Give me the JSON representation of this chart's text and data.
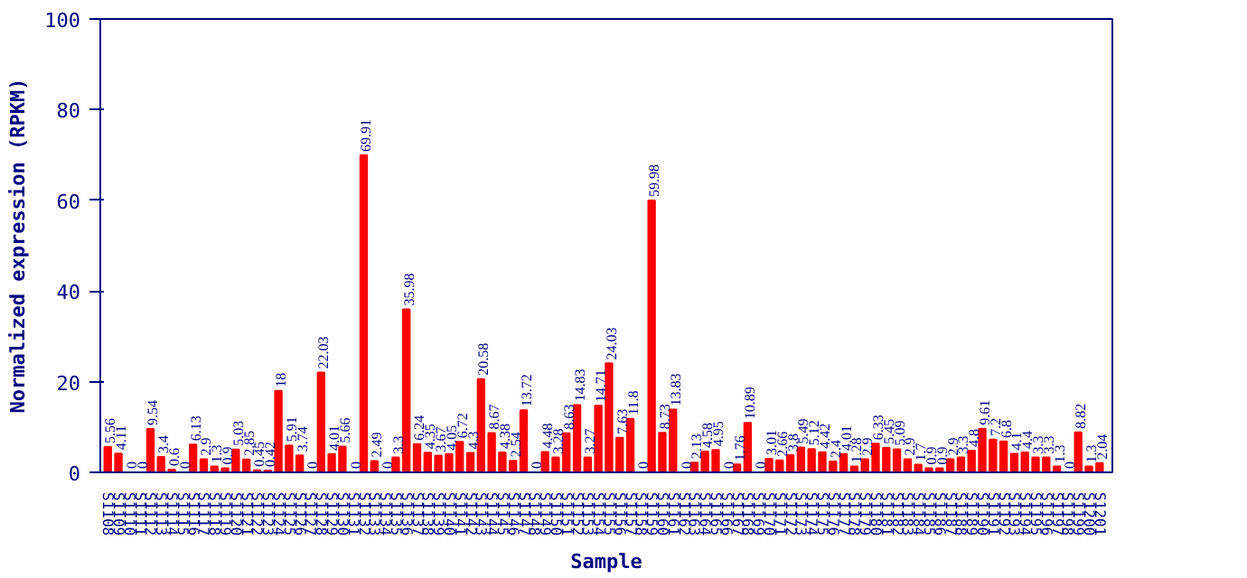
{
  "chart_data": {
    "type": "bar",
    "xlabel": "Sample",
    "ylabel": "Normalized expression (RPKM)",
    "categories": [
      "S1108",
      "S1109",
      "S1110",
      "S1111",
      "S1112",
      "S1113",
      "S1114",
      "S1115",
      "S1116",
      "S1117",
      "S1118",
      "S1119",
      "S1120",
      "S1121",
      "S1122",
      "S1123",
      "S1124",
      "S1125",
      "S1126",
      "S1127",
      "S1128",
      "S1129",
      "S1130",
      "S1131",
      "S1132",
      "S1133",
      "S1134",
      "S1135",
      "S1136",
      "S1137",
      "S1138",
      "S1139",
      "S1140",
      "S1141",
      "S1142",
      "S1143",
      "S1144",
      "S1145",
      "S1146",
      "S1147",
      "S1148",
      "S1149",
      "S1150",
      "S1151",
      "S1152",
      "S1153",
      "S1154",
      "S1155",
      "S1156",
      "S1157",
      "S1158",
      "S1159",
      "S1160",
      "S1161",
      "S1162",
      "S1163",
      "S1164",
      "S1165",
      "S1166",
      "S1167",
      "S1168",
      "S1169",
      "S1170",
      "S1171",
      "S1172",
      "S1173",
      "S1174",
      "S1175",
      "S1176",
      "S1177",
      "S1178",
      "S1179",
      "S1180",
      "S1181",
      "S1182",
      "S1183",
      "S1184",
      "S1185",
      "S1186",
      "S1187",
      "S1188",
      "S1189",
      "S1190",
      "S1191",
      "S1192",
      "S1193",
      "S1194",
      "S1195",
      "S1196",
      "S1197",
      "S1198",
      "S1199",
      "S1200",
      "S1201"
    ],
    "values": [
      5.56,
      4.11,
      0,
      0,
      9.54,
      3.4,
      0.6,
      0,
      6.13,
      2.9,
      1.3,
      0.9,
      5.03,
      2.85,
      0.45,
      0.42,
      18,
      5.91,
      3.74,
      0,
      22.03,
      4.01,
      5.66,
      0,
      69.91,
      2.49,
      0,
      3.3,
      35.98,
      6.24,
      4.35,
      3.67,
      4.05,
      6.72,
      4.3,
      20.58,
      8.67,
      4.38,
      2.54,
      13.72,
      0,
      4.48,
      3.28,
      8.63,
      14.83,
      3.27,
      14.71,
      24.03,
      7.63,
      11.8,
      0,
      59.98,
      8.73,
      13.83,
      0,
      2.13,
      4.58,
      4.95,
      0,
      1.76,
      10.89,
      0,
      3.01,
      2.66,
      3.8,
      5.49,
      5.12,
      4.42,
      2.4,
      4.01,
      1.28,
      2.9,
      6.33,
      5.45,
      5.09,
      2.9,
      1.7,
      0.9,
      0.9,
      2.9,
      3.3,
      4.8,
      9.61,
      7.2,
      6.8,
      4.1,
      4.4,
      3.3,
      3.3,
      1.3,
      0,
      8.82,
      1.3,
      2.04
    ],
    "color": "#ff0000",
    "ylim": [
      0,
      100
    ],
    "yticks": [
      0,
      20,
      40,
      60,
      80,
      100
    ],
    "grid": false,
    "data_labels": true
  }
}
